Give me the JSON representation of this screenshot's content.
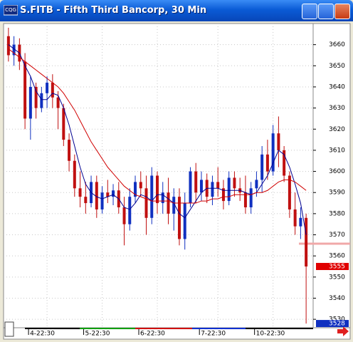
{
  "window": {
    "title": "S.FITB - Fifth Third Bancorp, 30 Min"
  },
  "chart_data": {
    "type": "candlestick",
    "categories": [
      null,
      null,
      null,
      null,
      null,
      null,
      null,
      "4-22:30",
      null,
      null,
      null,
      null,
      null,
      null,
      null,
      null,
      null,
      "5-22:30",
      null,
      null,
      null,
      null,
      null,
      null,
      null,
      null,
      null,
      "6-22:30",
      null,
      null,
      null,
      null,
      null,
      null,
      null,
      null,
      null,
      null,
      "7-22:30",
      null,
      null,
      null,
      null,
      null,
      null,
      null,
      null,
      null,
      "10-22:30",
      null,
      null,
      null,
      null,
      null,
      null
    ],
    "open": [
      3664,
      3655,
      3660,
      3652,
      3625,
      3640,
      3630,
      3637,
      3642,
      3635,
      3630,
      3615,
      3605,
      3592,
      3588,
      3585,
      3595,
      3582,
      3590,
      3588,
      3591,
      3583,
      3575,
      3588,
      3595,
      3592,
      3578,
      3598,
      3585,
      3590,
      3580,
      3588,
      3568,
      3585,
      3600,
      3590,
      3596,
      3588,
      3595,
      3592,
      3586,
      3597,
      3592,
      3590,
      3583,
      3592,
      3596,
      3608,
      3600,
      3618,
      3610,
      3598,
      3582,
      3574,
      3578
    ],
    "high": [
      3668,
      3664,
      3663,
      3656,
      3645,
      3642,
      3640,
      3645,
      3646,
      3638,
      3632,
      3618,
      3608,
      3600,
      3595,
      3598,
      3598,
      3593,
      3596,
      3594,
      3595,
      3588,
      3592,
      3598,
      3600,
      3598,
      3602,
      3600,
      3595,
      3597,
      3592,
      3592,
      3590,
      3602,
      3604,
      3600,
      3599,
      3598,
      3602,
      3596,
      3600,
      3600,
      3597,
      3598,
      3595,
      3600,
      3612,
      3615,
      3622,
      3626,
      3612,
      3600,
      3590,
      3583,
      3580
    ],
    "low": [
      3652,
      3650,
      3648,
      3620,
      3615,
      3625,
      3628,
      3630,
      3630,
      3620,
      3612,
      3600,
      3588,
      3583,
      3580,
      3583,
      3578,
      3580,
      3585,
      3584,
      3580,
      3565,
      3572,
      3585,
      3588,
      3570,
      3575,
      3580,
      3580,
      3575,
      3572,
      3565,
      3563,
      3583,
      3585,
      3586,
      3585,
      3584,
      3588,
      3582,
      3584,
      3588,
      3586,
      3580,
      3580,
      3588,
      3590,
      3596,
      3598,
      3602,
      3595,
      3578,
      3570,
      3568,
      3528
    ],
    "close": [
      3655,
      3660,
      3652,
      3625,
      3640,
      3630,
      3637,
      3642,
      3635,
      3630,
      3615,
      3605,
      3592,
      3588,
      3585,
      3595,
      3582,
      3590,
      3588,
      3591,
      3583,
      3575,
      3588,
      3595,
      3592,
      3578,
      3598,
      3585,
      3590,
      3580,
      3588,
      3568,
      3585,
      3600,
      3590,
      3596,
      3588,
      3595,
      3592,
      3586,
      3597,
      3592,
      3590,
      3583,
      3592,
      3596,
      3608,
      3600,
      3618,
      3610,
      3598,
      3582,
      3574,
      3578,
      3555
    ],
    "up_color": "#1030c0",
    "down_color": "#c01010",
    "lines": [
      {
        "color": "#000090",
        "values": [
          3660,
          3658,
          3656,
          3650,
          3645,
          3638,
          3634,
          3634,
          3637,
          3636,
          3630,
          3622,
          3612,
          3602,
          3594,
          3590,
          3588,
          3587,
          3588,
          3589,
          3587,
          3583,
          3582,
          3585,
          3589,
          3588,
          3586,
          3589,
          3589,
          3587,
          3585,
          3580,
          3578,
          3582,
          3586,
          3590,
          3592,
          3592,
          3592,
          3591,
          3591,
          3591,
          3591,
          3590,
          3589,
          3590,
          3594,
          3598,
          3604,
          3610,
          3608,
          3602,
          3594,
          3585,
          3570
        ]
      },
      {
        "color": "#d00000",
        "values": [
          3658,
          3656,
          3654,
          3652,
          3650,
          3648,
          3646,
          3644,
          3642,
          3640,
          3637,
          3633,
          3629,
          3624,
          3619,
          3614,
          3610,
          3606,
          3602,
          3599,
          3596,
          3593,
          3591,
          3589,
          3588,
          3587,
          3586,
          3586,
          3586,
          3586,
          3585,
          3585,
          3585,
          3585,
          3585,
          3586,
          3586,
          3587,
          3587,
          3588,
          3588,
          3589,
          3589,
          3589,
          3589,
          3590,
          3590,
          3591,
          3593,
          3595,
          3596,
          3596,
          3595,
          3593,
          3591
        ]
      }
    ],
    "price_markers": [
      {
        "value": 3555,
        "color": "#e00000"
      },
      {
        "value": 3528,
        "color": "#1030c0"
      }
    ],
    "ylim": [
      3526,
      3670
    ],
    "yticks": [
      3530,
      3540,
      3550,
      3560,
      3570,
      3580,
      3590,
      3600,
      3610,
      3620,
      3630,
      3640,
      3650,
      3660
    ],
    "grid": true
  }
}
